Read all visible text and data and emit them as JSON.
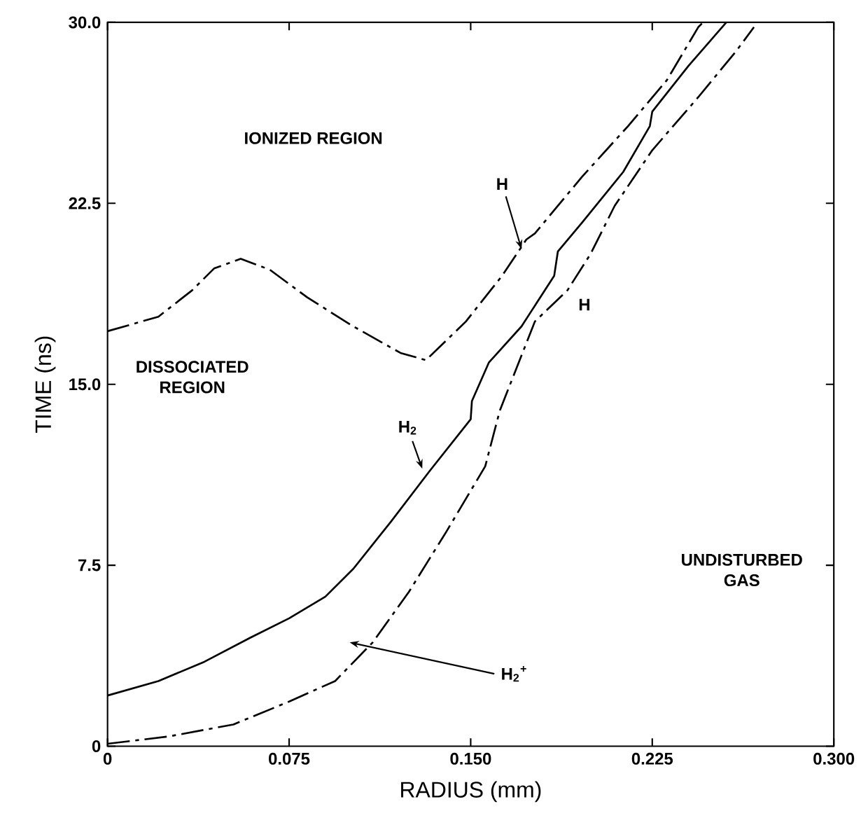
{
  "chart_data": {
    "type": "line",
    "xlabel": "RADIUS (mm)",
    "ylabel": "TIME (ns)",
    "xlim": [
      0,
      0.3
    ],
    "ylim": [
      0,
      30
    ],
    "xticks": [
      0,
      0.075,
      {
        "value": 0.15,
        "label": "0.150"
      },
      0.225,
      {
        "value": 0.3,
        "label": "0.300"
      }
    ],
    "yticks": [
      0,
      7.5,
      {
        "value": 15,
        "label": "15.0"
      },
      22.5,
      {
        "value": 30,
        "label": "30.0"
      }
    ],
    "grid": false,
    "legend": false,
    "annotations": [
      "IONIZED REGION",
      "DISSOCIATED REGION",
      "UNDISTURBED GAS",
      "H$_{2}$$^{+}$"
    ],
    "series": [
      {
        "name": "H",
        "color": "#000000",
        "line_style": "dashed",
        "x": [
          0,
          0.021,
          0.035,
          0.044,
          0.055,
          0.067,
          0.0825,
          0.1015,
          0.121,
          0.1315,
          0.148,
          0.163,
          0.173,
          0.1765,
          0.196,
          0.215,
          0.231,
          0.244,
          0.246
        ],
        "values": [
          17.2,
          17.8,
          18.9,
          19.8,
          20.2,
          19.75,
          18.6,
          17.4,
          16.3,
          16.0,
          17.6,
          19.5,
          21.0,
          21.25,
          23.6,
          25.7,
          27.6,
          29.8,
          30
        ]
      },
      {
        "name": "H$_{2}$",
        "color": "#000000",
        "line_style": "solid",
        "x": [
          0,
          0.021,
          0.04,
          0.059,
          0.075,
          0.09,
          0.1015,
          0.117,
          0.133,
          0.15,
          0.1505,
          0.1575,
          0.171,
          0.1845,
          0.186,
          0.196,
          0.213,
          0.224,
          0.225,
          0.24,
          0.2556
        ],
        "values": [
          2.1,
          2.7,
          3.5,
          4.5,
          5.3,
          6.2,
          7.35,
          9.3,
          11.4,
          13.55,
          14.3,
          15.9,
          17.4,
          19.5,
          20.5,
          21.7,
          23.8,
          25.7,
          26.3,
          28.2,
          30
        ]
      },
      {
        "name": "H",
        "color": "#000000",
        "line_style": "dashed",
        "x": [
          0,
          0.025,
          0.052,
          0.075,
          0.094,
          0.1095,
          0.1245,
          0.14,
          0.156,
          0.162,
          0.1765,
          0.19,
          0.1995,
          0.2095,
          0.225,
          0.244,
          0.2596,
          0.267
        ],
        "values": [
          0.1,
          0.4,
          0.9,
          1.85,
          2.7,
          4.3,
          6.4,
          8.9,
          11.6,
          13.9,
          17.6,
          18.9,
          20.4,
          22.4,
          24.7,
          26.9,
          28.8,
          29.8
        ]
      }
    ]
  }
}
